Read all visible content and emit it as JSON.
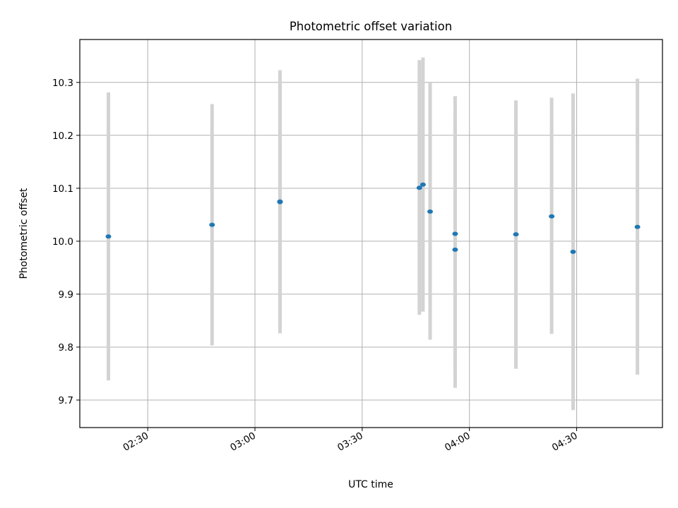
{
  "chart_data": {
    "type": "scatter",
    "title": "Photometric offset variation",
    "xlabel": "UTC time",
    "ylabel": "Photometric offset",
    "x_axis_type": "time",
    "xlim": [
      "02:11",
      "04:54"
    ],
    "ylim": [
      9.648,
      10.381
    ],
    "grid": true,
    "x_ticks": [
      "02:30",
      "03:00",
      "03:30",
      "04:00",
      "04:30"
    ],
    "y_ticks": [
      "9.7",
      "9.8",
      "9.9",
      "10.0",
      "10.1",
      "10.2",
      "10.3"
    ],
    "point_color": "#1f77b4",
    "errorbar_color": "#d3d3d3",
    "points": [
      {
        "x": "02:19",
        "y": 10.009,
        "ylow": 9.737,
        "yhigh": 10.281
      },
      {
        "x": "02:48",
        "y": 10.031,
        "ylow": 9.803,
        "yhigh": 10.259
      },
      {
        "x": "03:07",
        "y": 10.075,
        "ylow": 9.826,
        "yhigh": 10.323
      },
      {
        "x": "03:07",
        "y": 10.074,
        "ylow": 9.835,
        "yhigh": 10.314
      },
      {
        "x": "03:46",
        "y": 10.101,
        "ylow": 9.861,
        "yhigh": 10.342
      },
      {
        "x": "03:47",
        "y": 10.107,
        "ylow": 9.867,
        "yhigh": 10.347
      },
      {
        "x": "03:49",
        "y": 10.056,
        "ylow": 9.814,
        "yhigh": 10.299
      },
      {
        "x": "03:56",
        "y": 9.984,
        "ylow": 9.723,
        "yhigh": 10.244
      },
      {
        "x": "03:56",
        "y": 10.014,
        "ylow": 9.756,
        "yhigh": 10.274
      },
      {
        "x": "04:13",
        "y": 10.013,
        "ylow": 9.759,
        "yhigh": 10.266
      },
      {
        "x": "04:23",
        "y": 10.047,
        "ylow": 9.825,
        "yhigh": 10.271
      },
      {
        "x": "04:29",
        "y": 9.98,
        "ylow": 9.681,
        "yhigh": 10.279
      },
      {
        "x": "04:47",
        "y": 10.027,
        "ylow": 9.748,
        "yhigh": 10.307
      }
    ]
  }
}
